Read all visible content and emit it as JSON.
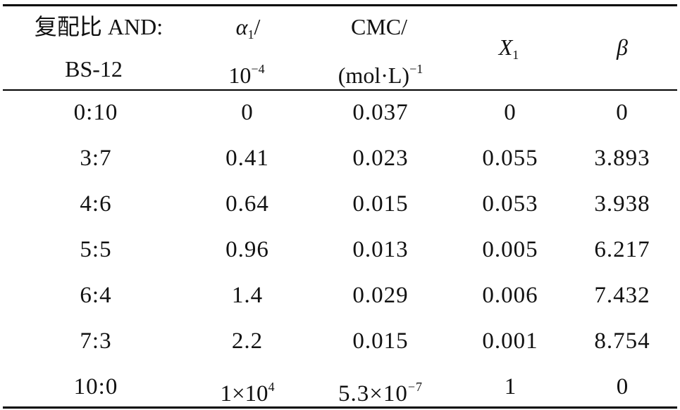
{
  "header": {
    "col1_line1": "复配比 AND:",
    "col1_line2": "BS-12",
    "col2_sym": "α",
    "col2_sub": "1",
    "col2_slash": "/",
    "col2_line2_base": "10",
    "col2_line2_exp": "−4",
    "col3_line1": "CMC/",
    "col3_line2": "(mol·L)",
    "col3_line2_exp": "−1",
    "col4_sym": "X",
    "col4_sub": "1",
    "col5": "β"
  },
  "rows": [
    {
      "ratio": "0:10",
      "alpha": "0",
      "cmc": "0.037",
      "x1": "0",
      "beta": "0"
    },
    {
      "ratio": "3:7",
      "alpha": "0.41",
      "cmc": "0.023",
      "x1": "0.055",
      "beta": "3.893"
    },
    {
      "ratio": "4:6",
      "alpha": "0.64",
      "cmc": "0.015",
      "x1": "0.053",
      "beta": "3.938"
    },
    {
      "ratio": "5:5",
      "alpha": "0.96",
      "cmc": "0.013",
      "x1": "0.005",
      "beta": "6.217"
    },
    {
      "ratio": "6:4",
      "alpha": "1.4",
      "cmc": "0.029",
      "x1": "0.006",
      "beta": "7.432"
    },
    {
      "ratio": "7:3",
      "alpha": "2.2",
      "cmc": "0.015",
      "x1": "0.001",
      "beta": "8.754"
    }
  ],
  "last_row": {
    "ratio": "10:0",
    "alpha_base": "1×10",
    "alpha_exp": "4",
    "cmc_base": "5.3×10",
    "cmc_exp": "−7",
    "x1": "1",
    "beta": "0"
  }
}
